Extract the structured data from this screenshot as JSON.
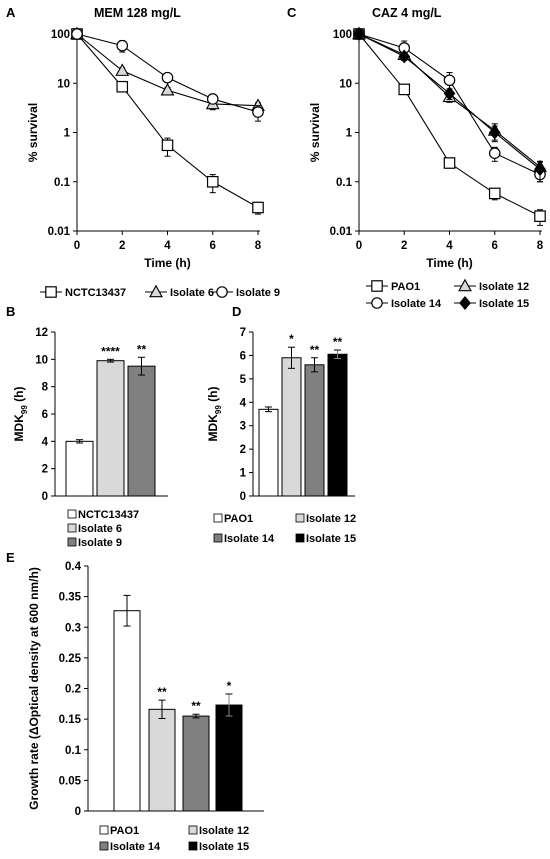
{
  "chart_data": [
    {
      "id": "A",
      "type": "line",
      "panel_label": "A",
      "title": "MEM 128 mg/L",
      "xlabel": "Time (h)",
      "ylabel": "% survival",
      "yscale": "log",
      "xlim": [
        0,
        8
      ],
      "ylim": [
        0.01,
        100
      ],
      "x_ticks": [
        "0",
        "2",
        "4",
        "6",
        "8"
      ],
      "y_ticks": [
        "0.01",
        "0.1",
        "1",
        "10",
        "100"
      ],
      "x": [
        0,
        2,
        4,
        6,
        8
      ],
      "series": [
        {
          "name": "NCTC13437",
          "marker": "square-open",
          "values": [
            100,
            8.5,
            0.55,
            0.1,
            0.03
          ],
          "err": [
            null,
            1.0,
            0.22,
            0.04,
            0.008
          ]
        },
        {
          "name": "Isolate 6",
          "marker": "triangle-open",
          "values": [
            100,
            18,
            7.2,
            3.8,
            3.5
          ],
          "err": [
            null,
            2.5,
            1.0,
            0.9,
            0.5
          ]
        },
        {
          "name": "Isolate 9",
          "marker": "circle-open",
          "values": [
            100,
            58,
            13,
            4.8,
            2.6
          ],
          "err": [
            null,
            15,
            2.0,
            0.8,
            0.9
          ]
        }
      ],
      "legend": "bottom"
    },
    {
      "id": "C",
      "type": "line",
      "panel_label": "C",
      "title": "CAZ 4 mg/L",
      "xlabel": "Time (h)",
      "ylabel": "% survival",
      "yscale": "log",
      "xlim": [
        0,
        8
      ],
      "ylim": [
        0.01,
        100
      ],
      "x_ticks": [
        "0",
        "2",
        "4",
        "6",
        "8"
      ],
      "y_ticks": [
        "0.01",
        "0.1",
        "1",
        "10",
        "100"
      ],
      "x": [
        0,
        2,
        4,
        6,
        8
      ],
      "series": [
        {
          "name": "PAO1",
          "marker": "square-open",
          "values": [
            100,
            7.5,
            0.24,
            0.058,
            0.02
          ],
          "err": [
            null,
            1.0,
            0.03,
            0.015,
            0.007
          ]
        },
        {
          "name": "Isolate 12",
          "marker": "triangle-open",
          "values": [
            100,
            38,
            5.3,
            1.1,
            0.2
          ],
          "err": [
            null,
            8,
            1.2,
            0.4,
            0.05
          ]
        },
        {
          "name": "Isolate 14",
          "marker": "circle-open",
          "values": [
            100,
            52,
            11.5,
            0.38,
            0.14
          ],
          "err": [
            null,
            20,
            5.0,
            0.12,
            0.04
          ]
        },
        {
          "name": "Isolate 15",
          "marker": "diamond-filled",
          "values": [
            100,
            35,
            6.2,
            1.0,
            0.18
          ],
          "err": [
            null,
            6,
            1.5,
            0.35,
            0.08
          ]
        }
      ],
      "legend": "bottom"
    },
    {
      "id": "B",
      "type": "bar",
      "panel_label": "B",
      "ylabel": "MDK99 (h)",
      "ylim": [
        0,
        12
      ],
      "y_ticks": [
        "0",
        "2",
        "4",
        "6",
        "8",
        "10",
        "12"
      ],
      "categories": [
        "NCTC13437",
        "Isolate 6",
        "Isolate 9"
      ],
      "values": [
        4.0,
        9.9,
        9.5
      ],
      "err": [
        0.12,
        0.1,
        0.65
      ],
      "colors": [
        "#ffffff",
        "#d9d9d9",
        "#808080"
      ],
      "significance": [
        "",
        "****",
        "**"
      ],
      "legend": "bottom"
    },
    {
      "id": "D",
      "type": "bar",
      "panel_label": "D",
      "ylabel": "MDK99 (h)",
      "ylim": [
        0,
        7
      ],
      "y_ticks": [
        "0",
        "1",
        "2",
        "3",
        "4",
        "5",
        "6",
        "7"
      ],
      "categories": [
        "PAO1",
        "Isolate 12",
        "Isolate 14",
        "Isolate 15"
      ],
      "values": [
        3.7,
        5.9,
        5.6,
        6.05
      ],
      "err": [
        0.1,
        0.45,
        0.3,
        0.18
      ],
      "colors": [
        "#ffffff",
        "#d9d9d9",
        "#808080",
        "#000000"
      ],
      "significance": [
        "",
        "*",
        "**",
        "**"
      ],
      "legend": "bottom"
    },
    {
      "id": "E",
      "type": "bar",
      "panel_label": "E",
      "ylabel": "Growth rate (ΔOptical density at 600 nm/h)",
      "ylim": [
        0,
        0.4
      ],
      "y_ticks": [
        "0",
        "0.05",
        "0.1",
        "0.15",
        "0.2",
        "0.25",
        "0.3",
        "0.35",
        "0.4"
      ],
      "categories": [
        "PAO1",
        "Isolate 12",
        "Isolate 14",
        "Isolate 15"
      ],
      "values": [
        0.327,
        0.166,
        0.155,
        0.173
      ],
      "err": [
        0.025,
        0.015,
        0.003,
        0.018
      ],
      "colors": [
        "#ffffff",
        "#d9d9d9",
        "#808080",
        "#000000"
      ],
      "significance": [
        "",
        "**",
        "**",
        "*"
      ],
      "legend": "bottom"
    }
  ]
}
